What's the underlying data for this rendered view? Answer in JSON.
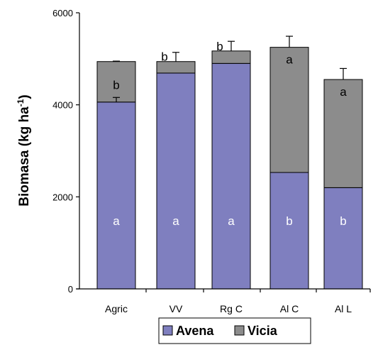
{
  "chart_data": {
    "type": "bar",
    "stacked": true,
    "categories": [
      "Agric",
      "VV",
      "Rg C",
      "Al C",
      "Al L"
    ],
    "series": [
      {
        "name": "Avena",
        "color": "#7f7fbf",
        "values": [
          4060,
          4690,
          4900,
          2530,
          2200
        ],
        "errors": [
          100,
          0,
          0,
          0,
          0
        ],
        "letters": [
          "a",
          "a",
          "a",
          "b",
          "b"
        ]
      },
      {
        "name": "Vicia",
        "color": "#8c8c8c",
        "values": [
          880,
          250,
          270,
          2720,
          2350
        ],
        "errors": [
          10,
          200,
          210,
          240,
          240
        ],
        "letters": [
          "b",
          "b",
          "b",
          "a",
          "a"
        ]
      }
    ],
    "ylabel_main": "Biomasa (kg ha",
    "ylabel_sup": "-1",
    "ylabel_close": ")",
    "ylim": [
      0,
      6000
    ],
    "yticks": [
      0,
      2000,
      4000,
      6000
    ],
    "grid": false,
    "legend": "bottom"
  }
}
